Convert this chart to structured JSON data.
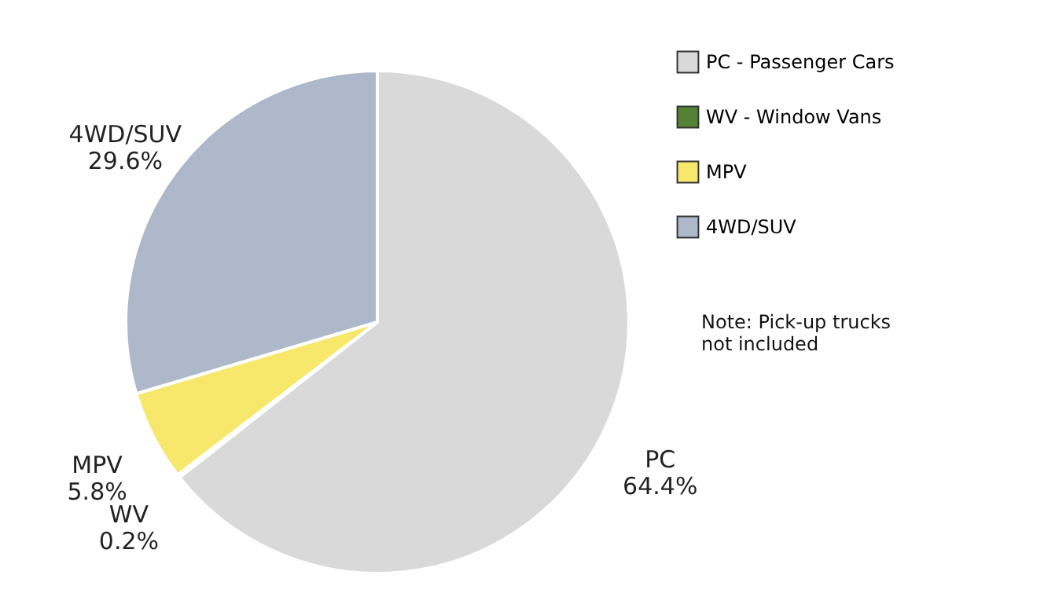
{
  "chart_data": {
    "type": "pie",
    "categories": [
      "PC - Passenger Cars",
      "WV - Window Vans",
      "MPV",
      "4WD/SUV"
    ],
    "values": [
      64.4,
      0.2,
      5.8,
      29.6
    ],
    "colors": [
      "#d9d9d9",
      "#548235",
      "#f7e76b",
      "#adb9ca"
    ],
    "value_labels": [
      "PC\n64.4%",
      "WV\n0.2%",
      "MPV\n5.8%",
      "4WD/SUV\n29.6%"
    ],
    "annotations": [
      "Note: Pick-up trucks\n         not included"
    ],
    "legend": "right"
  }
}
